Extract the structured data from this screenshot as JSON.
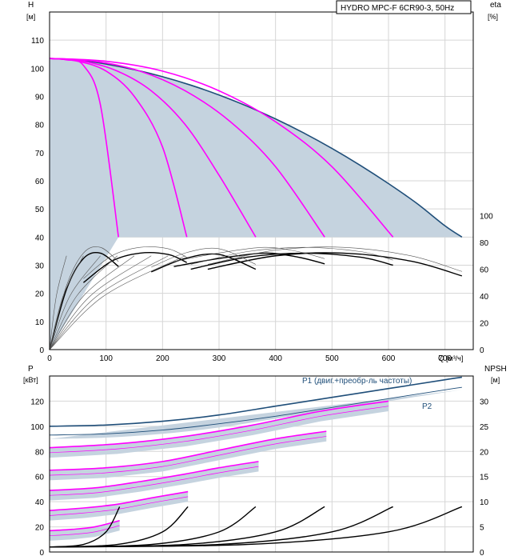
{
  "title_box": "HYDRO MPC-F 6CR90-3, 50Hz",
  "colors": {
    "area": "#c5d3df",
    "max_curve": "#1f4e79",
    "speed_curve": "#ff00ff",
    "eff_curve": "#000000",
    "eff_thin": "#555555",
    "grid": "#d6d6d6"
  },
  "chart_data": [
    {
      "type": "line",
      "name_text": "",
      "y_axis": {
        "label": "H",
        "unit": "[м]",
        "range": [
          0,
          120
        ],
        "ticks": [
          0,
          10,
          20,
          30,
          40,
          50,
          60,
          70,
          80,
          90,
          100,
          110
        ]
      },
      "y2_axis": {
        "label": "eta",
        "unit": "[%]",
        "range": [
          0,
          100
        ],
        "ticks": [
          0,
          20,
          40,
          60,
          80,
          100
        ]
      },
      "x_axis": {
        "label": "Q",
        "unit": "[м³/ч]",
        "range": [
          0,
          750
        ],
        "ticks": [
          0,
          100,
          200,
          300,
          400,
          500,
          600,
          700
        ]
      },
      "max_head_curve": {
        "x": [
          0,
          50,
          100,
          150,
          200,
          250,
          300,
          350,
          400,
          450,
          500,
          550,
          600,
          650,
          700,
          730
        ],
        "y": [
          103.5,
          103,
          101.5,
          99.5,
          97,
          94,
          90.5,
          86.5,
          82,
          77,
          71.5,
          65.5,
          59,
          52,
          44,
          40
        ]
      },
      "speed_curves": [
        {
          "x": [
            0,
            30,
            60,
            90,
            122
          ],
          "y": [
            103.5,
            103,
            101,
            87,
            40
          ]
        },
        {
          "x": [
            0,
            50,
            100,
            150,
            200,
            243
          ],
          "y": [
            103.5,
            102.5,
            99,
            90,
            72,
            40
          ]
        },
        {
          "x": [
            0,
            60,
            120,
            180,
            240,
            300,
            365
          ],
          "y": [
            103.5,
            102.5,
            99,
            92,
            80,
            62,
            40
          ]
        },
        {
          "x": [
            0,
            80,
            160,
            240,
            320,
            400,
            487
          ],
          "y": [
            103.5,
            102.5,
            99,
            92,
            81,
            65,
            40
          ]
        },
        {
          "x": [
            0,
            100,
            200,
            300,
            400,
            500,
            608
          ],
          "y": [
            103.5,
            102.5,
            99,
            92,
            81,
            65,
            40
          ]
        }
      ],
      "efficiency_curves": [
        {
          "x": [
            0,
            30,
            60,
            90,
            122
          ],
          "y": [
            0,
            45,
            68,
            72,
            62
          ]
        },
        {
          "x": [
            60,
            110,
            160,
            210,
            243
          ],
          "y": [
            50,
            66,
            72,
            71,
            65
          ]
        },
        {
          "x": [
            180,
            240,
            300,
            365
          ],
          "y": [
            58,
            68,
            71,
            60
          ]
        },
        {
          "x": [
            220,
            300,
            380,
            440,
            487
          ],
          "y": [
            62,
            68,
            72,
            69,
            64
          ]
        },
        {
          "x": [
            250,
            350,
            450,
            550,
            608
          ],
          "y": [
            60,
            69,
            72,
            69,
            63
          ]
        },
        {
          "x": [
            280,
            400,
            520,
            640,
            730
          ],
          "y": [
            60,
            70,
            72,
            66,
            55
          ]
        }
      ]
    },
    {
      "type": "line",
      "y_axis": {
        "label": "P",
        "unit": "[кВт]",
        "range": [
          0,
          140
        ],
        "ticks": [
          0,
          20,
          40,
          60,
          80,
          100,
          120
        ]
      },
      "y2_axis": {
        "label": "NPSH",
        "unit": "[м]",
        "range": [
          0,
          35
        ],
        "ticks": [
          0,
          5,
          10,
          15,
          20,
          25,
          30
        ]
      },
      "x_axis": {
        "range": [
          0,
          750
        ]
      },
      "series": [
        {
          "name": "P1 (двиг.+преобр-ль частоты)",
          "x": [
            0,
            100,
            200,
            300,
            400,
            500,
            600,
            700,
            730
          ],
          "y": [
            100,
            101,
            104,
            109,
            116,
            123,
            130,
            137,
            139
          ]
        },
        {
          "name": "P2",
          "x": [
            0,
            100,
            200,
            300,
            400,
            500,
            600,
            700,
            730
          ],
          "y": [
            93,
            94,
            97,
            102,
            108,
            115,
            122,
            129,
            131
          ]
        }
      ],
      "power_steps": [
        {
          "x": [
            0,
            120,
            240,
            360,
            480,
            600
          ],
          "y": [
            83,
            86,
            92,
            101,
            112,
            120
          ]
        },
        {
          "x": [
            0,
            100,
            200,
            300,
            400,
            490
          ],
          "y": [
            65,
            67,
            72,
            81,
            90,
            96
          ]
        },
        {
          "x": [
            0,
            80,
            160,
            240,
            300,
            370
          ],
          "y": [
            49,
            51,
            56,
            62,
            67,
            72
          ]
        },
        {
          "x": [
            0,
            60,
            120,
            180,
            245
          ],
          "y": [
            33,
            35,
            38,
            43,
            48
          ]
        },
        {
          "x": [
            0,
            40,
            80,
            124
          ],
          "y": [
            17,
            18,
            20,
            25
          ]
        }
      ],
      "npsh_curves": [
        {
          "x": [
            0,
            60,
            100,
            124
          ],
          "y": [
            1,
            1.5,
            4,
            9
          ]
        },
        {
          "x": [
            0,
            120,
            200,
            245
          ],
          "y": [
            1,
            1.5,
            4,
            9
          ]
        },
        {
          "x": [
            0,
            180,
            300,
            365
          ],
          "y": [
            1,
            1.5,
            4,
            9
          ]
        },
        {
          "x": [
            0,
            240,
            400,
            487
          ],
          "y": [
            1,
            1.5,
            4,
            9
          ]
        },
        {
          "x": [
            0,
            300,
            500,
            608
          ],
          "y": [
            1,
            1.5,
            4,
            9
          ]
        },
        {
          "x": [
            0,
            350,
            600,
            730
          ],
          "y": [
            1,
            1.5,
            4,
            9
          ]
        }
      ]
    }
  ]
}
